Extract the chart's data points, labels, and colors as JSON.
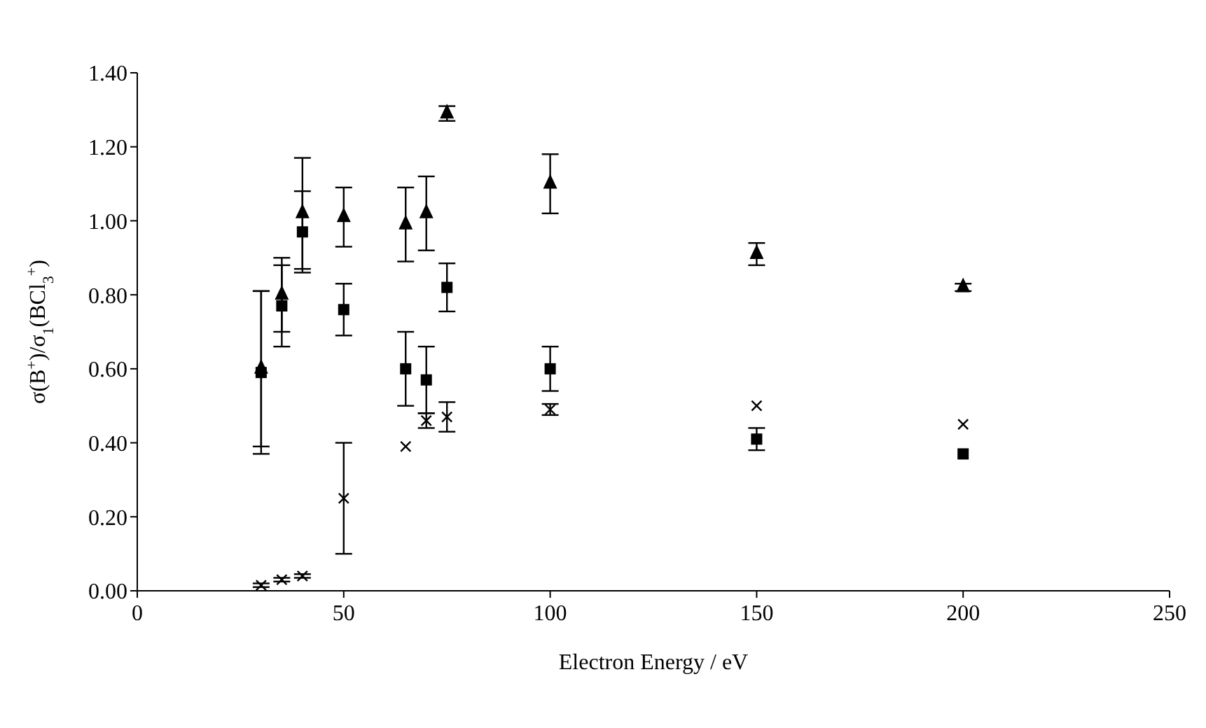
{
  "chart_data": {
    "type": "scatter",
    "xlabel": "Electron Energy / eV",
    "ylabel": "σ(B$^{+}$)/σ$_{1}$(BCl$_{3}$$^{+}$)",
    "x": [
      30,
      35,
      40,
      50,
      65,
      70,
      75,
      100,
      150,
      200
    ],
    "series": [
      {
        "color": "#000000",
        "marker": "triangle",
        "values": [
          0.6,
          0.8,
          1.02,
          1.01,
          0.99,
          1.02,
          1.29,
          1.1,
          0.91,
          0.82
        ],
        "errors": [
          0.21,
          0.1,
          0.15,
          0.08,
          0.1,
          0.1,
          0.02,
          0.08,
          0.03,
          0.01
        ]
      },
      {
        "color": "#000000",
        "marker": "square",
        "values": [
          0.59,
          0.77,
          0.97,
          0.76,
          0.6,
          0.57,
          0.82,
          0.6,
          0.41,
          0.37
        ],
        "errors": [
          0.22,
          0.11,
          0.11,
          0.07,
          0.1,
          0.09,
          0.065,
          0.06,
          0.03,
          null
        ]
      },
      {
        "color": "#000000",
        "marker": "cross",
        "values": [
          0.015,
          0.03,
          0.04,
          0.25,
          0.39,
          0.46,
          0.47,
          0.49,
          0.5,
          0.45
        ],
        "errors": [
          0.005,
          0.005,
          0.005,
          0.15,
          null,
          0.02,
          0.04,
          0.015,
          null,
          null
        ]
      }
    ],
    "xlim": [
      0,
      250
    ],
    "xticks": [
      0,
      50,
      100,
      150,
      200,
      250
    ],
    "ylim": [
      0,
      1.4
    ],
    "yticks": [
      {
        "value": 0,
        "label": "0.00"
      },
      {
        "value": 0.2,
        "label": "0.20"
      },
      {
        "value": 0.4,
        "label": "0.40"
      },
      {
        "value": 0.6,
        "label": "0.60"
      },
      {
        "value": 0.8,
        "label": "0.80"
      },
      {
        "value": 1.0,
        "label": "1.00"
      },
      {
        "value": 1.2,
        "label": "1.20"
      },
      {
        "value": 1.4,
        "label": "1.40"
      }
    ],
    "grid": false,
    "legend": false
  }
}
